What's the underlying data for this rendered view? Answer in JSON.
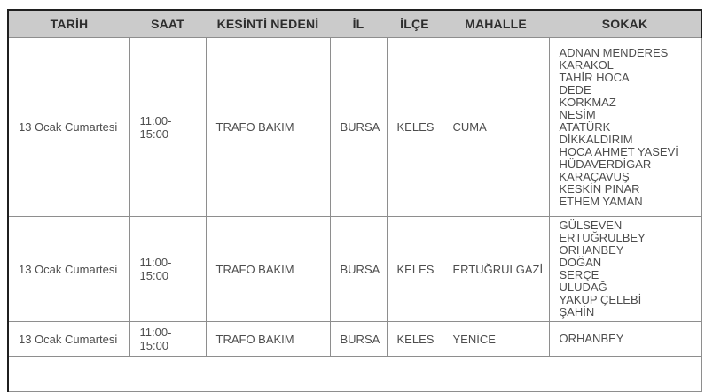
{
  "table": {
    "headers": [
      "TARİH",
      "SAAT",
      "KESİNTİ NEDENİ",
      "İL",
      "İLÇE",
      "MAHALLE",
      "SOKAK"
    ],
    "rows": [
      {
        "tarih": "13 Ocak Cumartesi",
        "saat": "11:00-15:00",
        "kesinti": "TRAFO BAKIM",
        "il": "BURSA",
        "ilce": "KELES",
        "mahalle": "CUMA",
        "sokak": [
          "ADNAN MENDERES",
          "KARAKOL",
          "TAHİR HOCA",
          "DEDE",
          "KORKMAZ",
          "NESİM",
          "ATATÜRK",
          "DİKKALDIRIM",
          "HOCA AHMET YASEVİ",
          "HÜDAVERDİGAR",
          "KARAÇAVUŞ",
          "KESKİN PINAR",
          "ETHEM YAMAN"
        ]
      },
      {
        "tarih": "13 Ocak Cumartesi",
        "saat": "11:00-15:00",
        "kesinti": "TRAFO BAKIM",
        "il": "BURSA",
        "ilce": "KELES",
        "mahalle": "ERTUĞRULGAZİ",
        "sokak": [
          "GÜLSEVEN",
          "ERTUĞRULBEY",
          "ORHANBEY",
          "DOĞAN",
          "SERÇE",
          "ULUDAĞ",
          "YAKUP ÇELEBİ",
          "ŞAHİN"
        ]
      },
      {
        "tarih": "13 Ocak Cumartesi",
        "saat": "11:00-15:00",
        "kesinti": "TRAFO BAKIM",
        "il": "BURSA",
        "ilce": "KELES",
        "mahalle": "YENİCE",
        "sokak": [
          "ORHANBEY"
        ]
      }
    ],
    "colors": {
      "header_bg": "#cbcbcb",
      "header_text": "#2d2d2d",
      "body_text": "#4d4d4d",
      "border_dark": "#1f1f1f",
      "border_light": "#8e8e8e"
    }
  }
}
